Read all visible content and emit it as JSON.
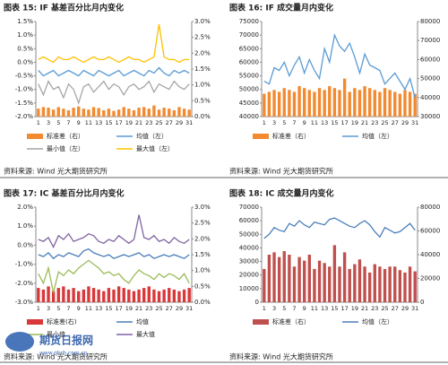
{
  "chart_data": [
    {
      "type": "combo",
      "title": "图表 15: IF 基差百分比月内变化",
      "source": "资料来源: Wind 光大期货研究所",
      "categories": [
        "1",
        null,
        "3",
        null,
        "5",
        null,
        "7",
        null,
        "9",
        null,
        "11",
        null,
        "13",
        null,
        "15",
        null,
        "17",
        null,
        "19",
        null,
        "21",
        null,
        "23",
        null,
        "25",
        null,
        "27",
        null,
        "29",
        null,
        "31"
      ],
      "ylim": [
        -2,
        1.5
      ],
      "yticks": [
        {
          "value": -2,
          "label": "-2.0%"
        },
        {
          "value": -1.5,
          "label": "-1.5%"
        },
        {
          "value": -1,
          "label": "-1.0%"
        },
        {
          "value": -0.5,
          "label": "-0.5%"
        },
        {
          "value": 0,
          "label": "0.0%"
        },
        {
          "value": 0.5,
          "label": "0.5%"
        },
        {
          "value": 1,
          "label": "1.0%"
        },
        {
          "value": 1.5,
          "label": "1.5%"
        }
      ],
      "y2lim": [
        0,
        3
      ],
      "y2ticks": [
        {
          "value": 0,
          "label": "0.0%"
        },
        {
          "value": 0.5,
          "label": "0.5%"
        },
        {
          "value": 1,
          "label": "1.0%"
        },
        {
          "value": 1.5,
          "label": "1.5%"
        },
        {
          "value": 2,
          "label": "2.0%"
        },
        {
          "value": 2.5,
          "label": "2.5%"
        },
        {
          "value": 3,
          "label": "3.0%"
        }
      ],
      "series": [
        {
          "name": "标准差（右）",
          "type": "bar",
          "axis": "y2",
          "color": "#f28a30",
          "values": [
            0.25,
            0.3,
            0.28,
            0.22,
            0.3,
            0.25,
            0.2,
            0.28,
            0.32,
            0.25,
            0.22,
            0.3,
            0.27,
            0.2,
            0.25,
            0.18,
            0.22,
            0.3,
            0.25,
            0.2,
            0.28,
            0.3,
            0.25,
            0.35,
            0.22,
            0.28,
            0.25,
            0.2,
            0.3,
            0.25,
            0.22
          ]
        },
        {
          "name": "均值（左）",
          "type": "line",
          "axis": "y",
          "color": "#5b9bd5",
          "values": [
            -0.3,
            -0.5,
            -0.4,
            -0.3,
            -0.5,
            -0.4,
            -0.3,
            -0.4,
            -0.5,
            -0.3,
            -0.4,
            -0.5,
            -0.3,
            -0.4,
            -0.5,
            -0.4,
            -0.3,
            -0.5,
            -0.4,
            -0.3,
            -0.4,
            -0.5,
            -0.3,
            -0.4,
            -0.2,
            -0.4,
            -0.5,
            -0.3,
            -0.4,
            -0.3,
            -0.4
          ]
        },
        {
          "name": "最小值（左）",
          "type": "line",
          "axis": "y",
          "color": "#a5a5a5",
          "values": [
            -0.8,
            -1.2,
            -0.7,
            -1,
            -0.9,
            -1.3,
            -0.8,
            -1,
            -1.5,
            -0.9,
            -0.8,
            -1.1,
            -0.9,
            -0.7,
            -1,
            -0.8,
            -0.9,
            -1.2,
            -0.9,
            -0.8,
            -1,
            -0.9,
            -0.7,
            -1.1,
            -0.8,
            -0.9,
            -1,
            -0.7,
            -0.9,
            -1,
            -0.8
          ]
        },
        {
          "name": "最大值（左）",
          "type": "line",
          "axis": "y",
          "color": "#ffc000",
          "values": [
            0.1,
            0.2,
            0.1,
            0,
            0.2,
            0.1,
            0.1,
            0.2,
            0.1,
            0,
            0.1,
            0.2,
            0.1,
            0.1,
            0.2,
            0.1,
            0,
            0.1,
            0.2,
            0.1,
            0.1,
            0,
            0.1,
            0.2,
            1.4,
            0.2,
            0.1,
            0.1,
            0,
            0.1,
            0.1
          ]
        }
      ]
    },
    {
      "type": "combo",
      "title": "图表 16: IF 成交量月内变化",
      "source": "资料来源: Wind 光大期货研究所",
      "categories": [
        "1",
        null,
        "3",
        null,
        "5",
        null,
        "7",
        null,
        "9",
        null,
        "11",
        null,
        "13",
        null,
        "15",
        null,
        "17",
        null,
        "19",
        null,
        "21",
        null,
        "23",
        null,
        "25",
        null,
        "27",
        null,
        "29",
        null,
        "31"
      ],
      "ylim": [
        40000,
        75000
      ],
      "yticks": [
        40000,
        45000,
        50000,
        55000,
        60000,
        65000,
        70000,
        75000
      ],
      "y2lim": [
        30000,
        80000
      ],
      "y2ticks": [
        30000,
        40000,
        50000,
        60000,
        70000,
        80000
      ],
      "series": [
        {
          "name": "标准差（右）",
          "type": "bar",
          "axis": "y2",
          "color": "#f28a30",
          "values": [
            42000,
            43000,
            44000,
            43000,
            45000,
            44000,
            43000,
            46000,
            45000,
            44000,
            43000,
            45000,
            44000,
            46000,
            45000,
            44000,
            50000,
            43000,
            45000,
            44000,
            46000,
            45000,
            44000,
            43000,
            45000,
            44000,
            43000,
            42000,
            44000,
            43000,
            42000
          ]
        },
        {
          "name": "均值（左）",
          "type": "line",
          "axis": "y",
          "color": "#5b9bd5",
          "values": [
            53000,
            52000,
            58000,
            57000,
            60000,
            55000,
            59000,
            62000,
            56000,
            61000,
            57000,
            54000,
            65000,
            60000,
            70000,
            66000,
            64000,
            67000,
            62000,
            56000,
            63000,
            59000,
            58000,
            57000,
            52000,
            54000,
            56000,
            53000,
            50000,
            54000,
            47000
          ]
        }
      ]
    },
    {
      "type": "combo",
      "title": "图表 17: IC 基差百分比月内变化",
      "source": "资料来源: Wind 光大期货研究所",
      "categories": [
        "1",
        null,
        "3",
        null,
        "5",
        null,
        "7",
        null,
        "9",
        null,
        "11",
        null,
        "13",
        null,
        "15",
        null,
        "17",
        null,
        "19",
        null,
        "21",
        null,
        "23",
        null,
        "25",
        null,
        "27",
        null,
        "29",
        null,
        "31"
      ],
      "ylim": [
        -3,
        2
      ],
      "yticks": [
        {
          "value": -3,
          "label": "-3.0%"
        },
        {
          "value": -2,
          "label": "-2.0%"
        },
        {
          "value": -1,
          "label": "-1.0%"
        },
        {
          "value": 0,
          "label": "0.0%"
        },
        {
          "value": 1,
          "label": "1.0%"
        },
        {
          "value": 2,
          "label": "2.0%"
        }
      ],
      "y2lim": [
        0,
        3
      ],
      "y2ticks": [
        {
          "value": 0,
          "label": "0.0%"
        },
        {
          "value": 0.5,
          "label": "0.5%"
        },
        {
          "value": 1,
          "label": "1.0%"
        },
        {
          "value": 1.5,
          "label": "1.5%"
        },
        {
          "value": 2,
          "label": "2.0%"
        },
        {
          "value": 2.5,
          "label": "2.5%"
        },
        {
          "value": 3,
          "label": "3.0%"
        }
      ],
      "series": [
        {
          "name": "标准差(右)",
          "type": "bar",
          "axis": "y2",
          "color": "#d9383a",
          "values": [
            0.45,
            0.4,
            0.5,
            0.35,
            0.45,
            0.5,
            0.4,
            0.45,
            0.35,
            0.4,
            0.5,
            0.45,
            0.4,
            0.35,
            0.45,
            0.4,
            0.5,
            0.45,
            0.4,
            0.35,
            0.4,
            0.45,
            0.5,
            0.4,
            0.35,
            0.4,
            0.45,
            0.4,
            0.35,
            0.4,
            0.45
          ]
        },
        {
          "name": "均值",
          "type": "line",
          "axis": "y",
          "color": "#4a7ebb",
          "values": [
            -0.5,
            -0.6,
            -0.4,
            -0.7,
            -0.5,
            -0.6,
            -0.4,
            -0.5,
            -0.6,
            -0.3,
            -0.2,
            -0.4,
            -0.5,
            -0.6,
            -0.5,
            -0.7,
            -0.6,
            -0.5,
            -0.6,
            -0.5,
            -0.4,
            -0.6,
            -0.5,
            -0.7,
            -0.6,
            -0.5,
            -0.6,
            -0.5,
            -0.6,
            -0.7,
            -0.5
          ]
        },
        {
          "name": "最小值",
          "type": "line",
          "axis": "y",
          "color": "#9bbb59",
          "values": [
            -1.5,
            -2,
            -1.2,
            -2.5,
            -1.4,
            -1.6,
            -1.3,
            -1.5,
            -1.2,
            -1,
            -0.8,
            -1,
            -1.2,
            -1.5,
            -1.4,
            -1.6,
            -1.5,
            -1.8,
            -2,
            -1.6,
            -1.3,
            -1.5,
            -1.6,
            -1.8,
            -1.5,
            -1.7,
            -1.5,
            -1.6,
            -1.8,
            -1.5,
            -2
          ]
        },
        {
          "name": "最大值",
          "type": "line",
          "axis": "y",
          "color": "#8064a2",
          "values": [
            0.3,
            0.2,
            0.4,
            -0.1,
            0.5,
            0.3,
            0.6,
            0.2,
            0.3,
            0.4,
            0.6,
            0.5,
            0.2,
            0.1,
            0.3,
            0.2,
            0.5,
            0.3,
            0.1,
            0.3,
            1.6,
            0.4,
            0.3,
            0.5,
            0.2,
            0.3,
            0.1,
            0.4,
            0.2,
            0.1,
            0.3
          ]
        }
      ]
    },
    {
      "type": "combo",
      "title": "图表 18: IC 成交量月内变化",
      "source": "资料来源: Wind 光大期货研究所",
      "categories": [
        "1",
        null,
        "3",
        null,
        "5",
        null,
        "7",
        null,
        "9",
        null,
        "11",
        null,
        "13",
        null,
        "15",
        null,
        "17",
        null,
        "19",
        null,
        "21",
        null,
        "23",
        null,
        "25",
        null,
        "27",
        null,
        "29",
        null,
        "31"
      ],
      "ylim": [
        0,
        70000
      ],
      "yticks": [
        0,
        10000,
        20000,
        30000,
        40000,
        50000,
        60000,
        70000
      ],
      "y2lim": [
        0,
        80000
      ],
      "y2ticks": [
        0,
        20000,
        40000,
        60000,
        80000
      ],
      "series": [
        {
          "name": "标准差（右）",
          "type": "bar",
          "axis": "y2",
          "color": "#c0504d",
          "values": [
            28000,
            40000,
            42000,
            38000,
            43000,
            40000,
            30000,
            38000,
            35000,
            40000,
            28000,
            35000,
            33000,
            30000,
            48000,
            30000,
            42000,
            28000,
            32000,
            36000,
            30000,
            25000,
            32000,
            30000,
            28000,
            30000,
            30000,
            27000,
            25000,
            30000,
            26000
          ]
        },
        {
          "name": "均值（左）",
          "type": "line",
          "axis": "y",
          "color": "#4a7ebb",
          "values": [
            47000,
            50000,
            55000,
            53000,
            52000,
            58000,
            56000,
            60000,
            57000,
            55000,
            59000,
            58000,
            57000,
            61000,
            62000,
            60000,
            58000,
            56000,
            55000,
            58000,
            60000,
            57000,
            52000,
            48000,
            55000,
            53000,
            51000,
            52000,
            55000,
            58000,
            53000
          ]
        }
      ]
    }
  ],
  "watermark": {
    "text": "期货日报网",
    "url": "www.qhrb.com.cn"
  }
}
